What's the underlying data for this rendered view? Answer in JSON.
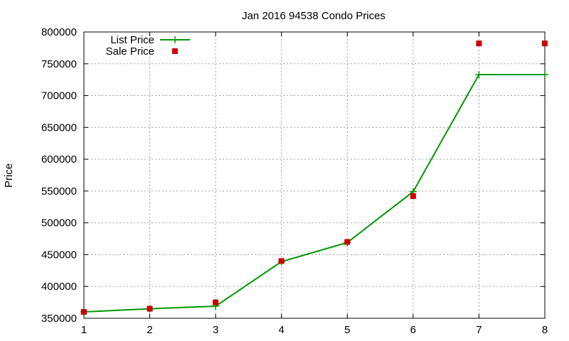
{
  "chart_data": {
    "type": "line",
    "title": "Jan 2016 94538 Condo Prices",
    "xlabel": "",
    "ylabel": "Price",
    "xlim": [
      1,
      8
    ],
    "ylim": [
      350000,
      800000
    ],
    "x_ticks": [
      1,
      2,
      3,
      4,
      5,
      6,
      7,
      8
    ],
    "y_ticks": [
      350000,
      400000,
      450000,
      500000,
      550000,
      600000,
      650000,
      700000,
      750000,
      800000
    ],
    "grid": true,
    "legend_position": "top-left",
    "series": [
      {
        "name": "List Price",
        "style": "line-plus",
        "color": "#009900",
        "x": [
          1,
          2,
          3,
          4,
          5,
          6,
          7,
          8
        ],
        "values": [
          360000,
          365000,
          369000,
          439000,
          469000,
          549000,
          733000,
          733000
        ]
      },
      {
        "name": "Sale Price",
        "style": "square-markers",
        "color": "#cc0000",
        "x": [
          1,
          2,
          3,
          4,
          5,
          6,
          7,
          8
        ],
        "values": [
          360000,
          365000,
          375000,
          440000,
          470000,
          542000,
          782000,
          782000
        ]
      }
    ]
  }
}
